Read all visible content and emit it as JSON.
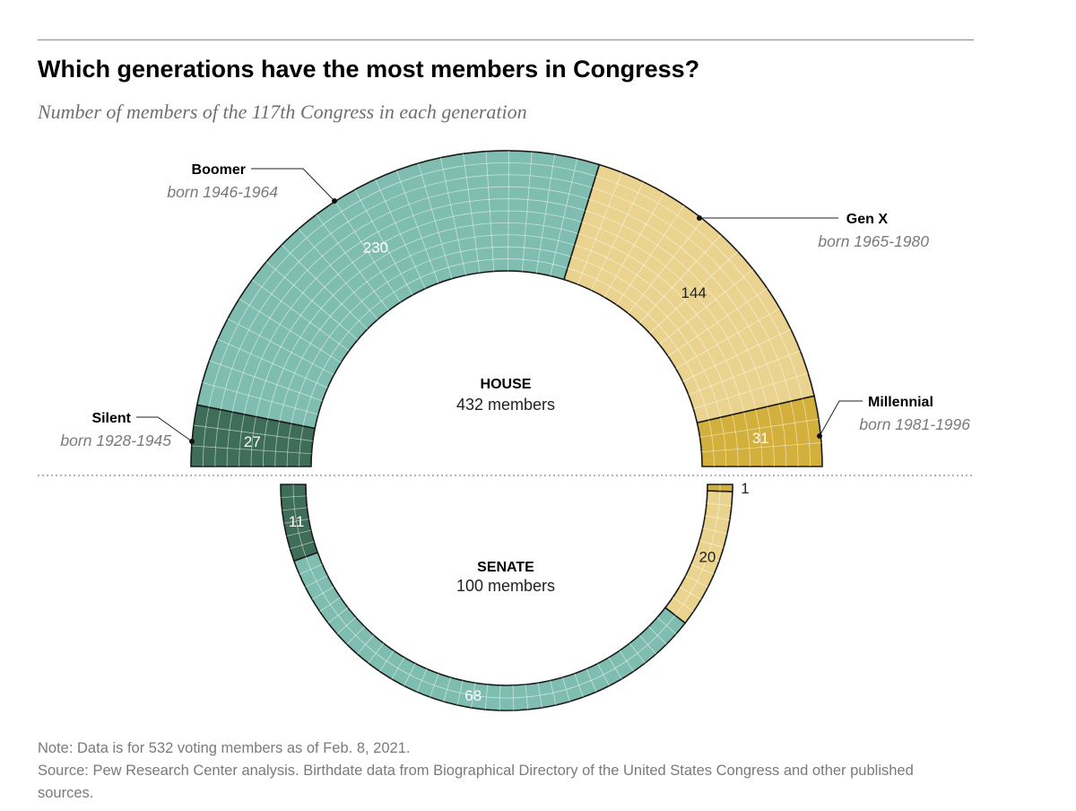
{
  "title": "Which generations have the most members in Congress?",
  "subtitle": "Number of members of the 117th Congress in each generation",
  "note": "Note: Data is for 532 voting members as of Feb. 8, 2021.",
  "source": "Source: Pew Research Center analysis. Birthdate data from Biographical Directory of the United States Congress and other published sources.",
  "chart_data": {
    "type": "parliament-arc",
    "generations": [
      {
        "name": "Silent",
        "years": "born 1928-1945",
        "color": "#3e6e59"
      },
      {
        "name": "Boomer",
        "years": "born 1946-1964",
        "color": "#80bdb1"
      },
      {
        "name": "Gen X",
        "years": "born 1965-1980",
        "color": "#ead38e"
      },
      {
        "name": "Millennial",
        "years": "born 1981-1996",
        "color": "#d3b03c"
      }
    ],
    "house": {
      "label": "HOUSE",
      "total_label": "432 members",
      "values": [
        {
          "generation": "Silent",
          "value": 27,
          "label": "27"
        },
        {
          "generation": "Boomer",
          "value": 230,
          "label": "230"
        },
        {
          "generation": "Gen X",
          "value": 144,
          "label": "144"
        },
        {
          "generation": "Millennial",
          "value": 31,
          "label": "31"
        }
      ]
    },
    "senate": {
      "label": "SENATE",
      "total_label": "100 members",
      "values": [
        {
          "generation": "Silent",
          "value": 11,
          "label": "11"
        },
        {
          "generation": "Boomer",
          "value": 68,
          "label": "68"
        },
        {
          "generation": "Gen X",
          "value": 20,
          "label": "20"
        },
        {
          "generation": "Millennial",
          "value": 1,
          "label": "1"
        }
      ]
    }
  }
}
